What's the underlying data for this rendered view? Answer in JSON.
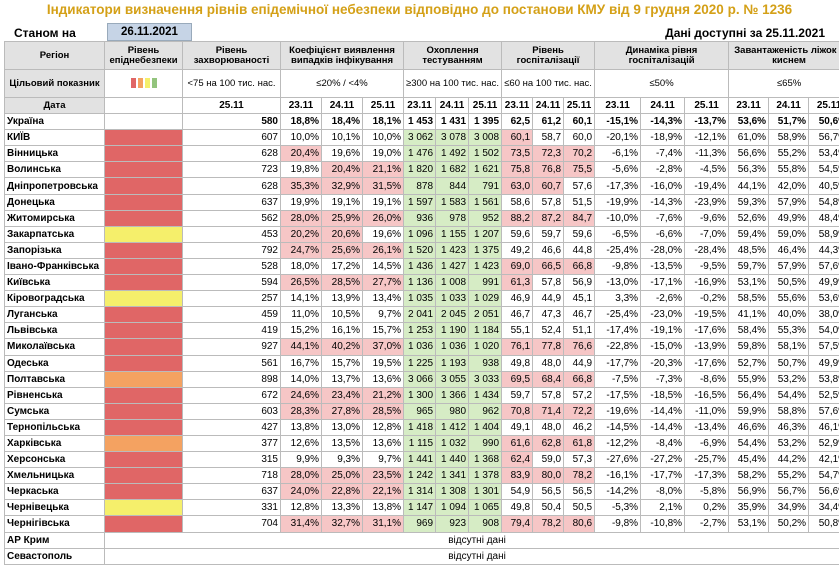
{
  "header": {
    "title": "Індикатори визначення рівнів епідемічної небезпеки відповідно до постанови КМУ від 9 грудня 2020 р. № 1236",
    "asof_label": "Станом на",
    "asof_date": "26.11.2021",
    "avail_label": "Дані доступні за 25.11.2021"
  },
  "columns": {
    "region": "Регіон",
    "level": "Рівень епіднебезпеки",
    "incidence": "Рівень захворюваності",
    "detection": "Коефіцієнт виявлення випадків інфікування",
    "testing": "Охоплення тестуванням",
    "hosp": "Рівень госпіталізації",
    "dynamics": "Динаміка рівня госпіталізацій",
    "oxygen": "Завантаженість ліжок з киснем"
  },
  "targets": {
    "label": "Цільовий показник",
    "incidence": "<75 на 100 тис. нас.",
    "detection": "≤20% / <4%",
    "testing": "≥300 на 100 тис. нас.",
    "hosp": "≤60 на 100 тис. нас.",
    "dynamics": "≤50%",
    "oxygen": "≤65%",
    "legend_colors": [
      "#e06666",
      "#f4a261",
      "#f5ef6b",
      "#93c47d"
    ]
  },
  "dates": {
    "label": "Дата",
    "incidence": "25.11",
    "triple": [
      "23.11",
      "24.11",
      "25.11"
    ]
  },
  "rows": [
    {
      "region": "Україна",
      "level": "",
      "inc": "580",
      "det": [
        "18,8%",
        "18,4%",
        "18,1%"
      ],
      "test": [
        "1 453",
        "1 431",
        "1 395"
      ],
      "hosp": [
        "62,5",
        "61,2",
        "60,1"
      ],
      "dyn": [
        "-15,1%",
        "-14,3%",
        "-13,7%"
      ],
      "oxy": [
        "53,6%",
        "51,7%",
        "50,6%"
      ]
    },
    {
      "region": "КИЇВ",
      "level": "red",
      "inc": "607",
      "det": [
        "10,0%",
        "10,1%",
        "10,0%"
      ],
      "test": [
        "3 062",
        "3 078",
        "3 008"
      ],
      "hosp": [
        "60,1",
        "58,7",
        "60,0"
      ],
      "dyn": [
        "-20,1%",
        "-18,9%",
        "-12,1%"
      ],
      "oxy": [
        "61,0%",
        "58,9%",
        "56,7%"
      ]
    },
    {
      "region": "Вінницька",
      "level": "red",
      "inc": "628",
      "det": [
        "20,4%",
        "19,6%",
        "19,0%"
      ],
      "test": [
        "1 476",
        "1 492",
        "1 502"
      ],
      "hosp": [
        "73,5",
        "72,3",
        "70,2"
      ],
      "dyn": [
        "-6,1%",
        "-7,4%",
        "-11,3%"
      ],
      "oxy": [
        "56,6%",
        "55,2%",
        "53,4%"
      ]
    },
    {
      "region": "Волинська",
      "level": "red",
      "inc": "723",
      "det": [
        "19,8%",
        "20,4%",
        "21,1%"
      ],
      "test": [
        "1 820",
        "1 682",
        "1 621"
      ],
      "hosp": [
        "75,8",
        "76,8",
        "75,5"
      ],
      "dyn": [
        "-5,6%",
        "-2,8%",
        "-4,5%"
      ],
      "oxy": [
        "56,3%",
        "55,8%",
        "54,5%"
      ]
    },
    {
      "region": "Дніпропетровська",
      "level": "red",
      "inc": "628",
      "det": [
        "35,3%",
        "32,9%",
        "31,5%"
      ],
      "test": [
        "878",
        "844",
        "791"
      ],
      "hosp": [
        "63,0",
        "60,7",
        "57,6"
      ],
      "dyn": [
        "-17,3%",
        "-16,0%",
        "-19,4%"
      ],
      "oxy": [
        "44,1%",
        "42,0%",
        "40,5%"
      ]
    },
    {
      "region": "Донецька",
      "level": "red",
      "inc": "637",
      "det": [
        "19,9%",
        "19,1%",
        "19,1%"
      ],
      "test": [
        "1 597",
        "1 583",
        "1 561"
      ],
      "hosp": [
        "58,6",
        "57,8",
        "51,5"
      ],
      "dyn": [
        "-19,9%",
        "-14,3%",
        "-23,9%"
      ],
      "oxy": [
        "59,3%",
        "57,9%",
        "54,8%"
      ]
    },
    {
      "region": "Житомирська",
      "level": "red",
      "inc": "562",
      "det": [
        "28,0%",
        "25,9%",
        "26,0%"
      ],
      "test": [
        "936",
        "978",
        "952"
      ],
      "hosp": [
        "88,2",
        "87,2",
        "84,7"
      ],
      "dyn": [
        "-10,0%",
        "-7,6%",
        "-9,6%"
      ],
      "oxy": [
        "52,6%",
        "49,9%",
        "48,4%"
      ]
    },
    {
      "region": "Закарпатська",
      "level": "yel",
      "inc": "453",
      "det": [
        "20,2%",
        "20,6%",
        "19,6%"
      ],
      "test": [
        "1 096",
        "1 155",
        "1 207"
      ],
      "hosp": [
        "59,6",
        "59,7",
        "59,6"
      ],
      "dyn": [
        "-6,5%",
        "-6,6%",
        "-7,0%"
      ],
      "oxy": [
        "59,4%",
        "59,0%",
        "58,9%"
      ]
    },
    {
      "region": "Запорізька",
      "level": "red",
      "inc": "792",
      "det": [
        "24,7%",
        "25,6%",
        "26,1%"
      ],
      "test": [
        "1 520",
        "1 423",
        "1 375"
      ],
      "hosp": [
        "49,2",
        "46,6",
        "44,8"
      ],
      "dyn": [
        "-25,4%",
        "-28,0%",
        "-28,4%"
      ],
      "oxy": [
        "48,5%",
        "46,4%",
        "44,3%"
      ]
    },
    {
      "region": "Івано-Франківська",
      "level": "red",
      "inc": "528",
      "det": [
        "18,0%",
        "17,2%",
        "14,5%"
      ],
      "test": [
        "1 436",
        "1 427",
        "1 423"
      ],
      "hosp": [
        "69,0",
        "66,5",
        "66,8"
      ],
      "dyn": [
        "-9,8%",
        "-13,5%",
        "-9,5%"
      ],
      "oxy": [
        "59,7%",
        "57,9%",
        "57,6%"
      ]
    },
    {
      "region": "Київська",
      "level": "red",
      "inc": "594",
      "det": [
        "26,5%",
        "28,5%",
        "27,7%"
      ],
      "test": [
        "1 136",
        "1 008",
        "991"
      ],
      "hosp": [
        "61,3",
        "57,8",
        "56,9"
      ],
      "dyn": [
        "-13,0%",
        "-17,1%",
        "-16,9%"
      ],
      "oxy": [
        "53,1%",
        "50,5%",
        "49,9%"
      ]
    },
    {
      "region": "Кіровоградська",
      "level": "yel",
      "inc": "257",
      "det": [
        "14,1%",
        "13,9%",
        "13,4%"
      ],
      "test": [
        "1 035",
        "1 033",
        "1 029"
      ],
      "hosp": [
        "46,9",
        "44,9",
        "45,1"
      ],
      "dyn": [
        "3,3%",
        "-2,6%",
        "-0,2%"
      ],
      "oxy": [
        "58,5%",
        "55,6%",
        "53,6%"
      ]
    },
    {
      "region": "Луганська",
      "level": "red",
      "inc": "459",
      "det": [
        "11,0%",
        "10,5%",
        "9,7%"
      ],
      "test": [
        "2 041",
        "2 045",
        "2 051"
      ],
      "hosp": [
        "46,7",
        "47,3",
        "46,7"
      ],
      "dyn": [
        "-25,4%",
        "-23,0%",
        "-19,5%"
      ],
      "oxy": [
        "41,1%",
        "40,0%",
        "38,0%"
      ]
    },
    {
      "region": "Львівська",
      "level": "red",
      "inc": "419",
      "det": [
        "15,2%",
        "16,1%",
        "15,7%"
      ],
      "test": [
        "1 253",
        "1 190",
        "1 184"
      ],
      "hosp": [
        "55,1",
        "52,4",
        "51,1"
      ],
      "dyn": [
        "-17,4%",
        "-19,1%",
        "-17,6%"
      ],
      "oxy": [
        "58,4%",
        "55,3%",
        "54,0%"
      ]
    },
    {
      "region": "Миколаївська",
      "level": "red",
      "inc": "927",
      "det": [
        "44,1%",
        "40,2%",
        "37,0%"
      ],
      "test": [
        "1 036",
        "1 036",
        "1 020"
      ],
      "hosp": [
        "76,1",
        "77,8",
        "76,6"
      ],
      "dyn": [
        "-22,8%",
        "-15,0%",
        "-13,9%"
      ],
      "oxy": [
        "59,8%",
        "58,1%",
        "57,5%"
      ]
    },
    {
      "region": "Одеська",
      "level": "red",
      "inc": "561",
      "det": [
        "16,7%",
        "15,7%",
        "19,5%"
      ],
      "test": [
        "1 225",
        "1 193",
        "938"
      ],
      "hosp": [
        "49,8",
        "48,0",
        "44,9"
      ],
      "dyn": [
        "-17,7%",
        "-20,3%",
        "-17,6%"
      ],
      "oxy": [
        "52,7%",
        "50,7%",
        "49,9%"
      ]
    },
    {
      "region": "Полтавська",
      "level": "ora",
      "inc": "898",
      "det": [
        "14,0%",
        "13,7%",
        "13,6%"
      ],
      "test": [
        "3 066",
        "3 055",
        "3 033"
      ],
      "hosp": [
        "69,5",
        "68,4",
        "66,8"
      ],
      "dyn": [
        "-7,5%",
        "-7,3%",
        "-8,6%"
      ],
      "oxy": [
        "55,9%",
        "53,2%",
        "53,8%"
      ]
    },
    {
      "region": "Рівненська",
      "level": "red",
      "inc": "672",
      "det": [
        "24,6%",
        "23,4%",
        "21,2%"
      ],
      "test": [
        "1 300",
        "1 366",
        "1 434"
      ],
      "hosp": [
        "59,7",
        "57,8",
        "57,2"
      ],
      "dyn": [
        "-17,5%",
        "-18,5%",
        "-16,5%"
      ],
      "oxy": [
        "56,4%",
        "54,4%",
        "52,5%"
      ]
    },
    {
      "region": "Сумська",
      "level": "red",
      "inc": "603",
      "det": [
        "28,3%",
        "27,8%",
        "28,5%"
      ],
      "test": [
        "965",
        "980",
        "962"
      ],
      "hosp": [
        "70,8",
        "71,4",
        "72,2"
      ],
      "dyn": [
        "-19,6%",
        "-14,4%",
        "-11,0%"
      ],
      "oxy": [
        "59,9%",
        "58,8%",
        "57,6%"
      ]
    },
    {
      "region": "Тернопільська",
      "level": "red",
      "inc": "427",
      "det": [
        "13,8%",
        "13,0%",
        "12,8%"
      ],
      "test": [
        "1 418",
        "1 412",
        "1 404"
      ],
      "hosp": [
        "49,1",
        "48,0",
        "46,2"
      ],
      "dyn": [
        "-14,5%",
        "-14,4%",
        "-13,4%"
      ],
      "oxy": [
        "46,6%",
        "46,3%",
        "46,1%"
      ]
    },
    {
      "region": "Харківська",
      "level": "ora",
      "inc": "377",
      "det": [
        "12,6%",
        "13,5%",
        "13,6%"
      ],
      "test": [
        "1 115",
        "1 032",
        "990"
      ],
      "hosp": [
        "61,6",
        "62,8",
        "61,8"
      ],
      "dyn": [
        "-12,2%",
        "-8,4%",
        "-6,9%"
      ],
      "oxy": [
        "54,4%",
        "53,2%",
        "52,9%"
      ]
    },
    {
      "region": "Херсонська",
      "level": "red",
      "inc": "315",
      "det": [
        "9,9%",
        "9,3%",
        "9,7%"
      ],
      "test": [
        "1 441",
        "1 440",
        "1 368"
      ],
      "hosp": [
        "62,4",
        "59,0",
        "57,3"
      ],
      "dyn": [
        "-27,6%",
        "-27,2%",
        "-25,7%"
      ],
      "oxy": [
        "45,4%",
        "44,2%",
        "42,1%"
      ]
    },
    {
      "region": "Хмельницька",
      "level": "red",
      "inc": "718",
      "det": [
        "28,0%",
        "25,0%",
        "23,5%"
      ],
      "test": [
        "1 242",
        "1 341",
        "1 378"
      ],
      "hosp": [
        "83,9",
        "80,0",
        "78,2"
      ],
      "dyn": [
        "-16,1%",
        "-17,7%",
        "-17,3%"
      ],
      "oxy": [
        "58,2%",
        "55,2%",
        "54,7%"
      ]
    },
    {
      "region": "Черкаська",
      "level": "red",
      "inc": "637",
      "det": [
        "24,0%",
        "22,8%",
        "22,1%"
      ],
      "test": [
        "1 314",
        "1 308",
        "1 301"
      ],
      "hosp": [
        "54,9",
        "56,5",
        "56,5"
      ],
      "dyn": [
        "-14,2%",
        "-8,0%",
        "-5,8%"
      ],
      "oxy": [
        "56,9%",
        "56,7%",
        "56,6%"
      ]
    },
    {
      "region": "Чернівецька",
      "level": "yel",
      "inc": "331",
      "det": [
        "12,8%",
        "13,3%",
        "13,8%"
      ],
      "test": [
        "1 147",
        "1 094",
        "1 065"
      ],
      "hosp": [
        "49,8",
        "50,4",
        "50,5"
      ],
      "dyn": [
        "-5,3%",
        "2,1%",
        "0,2%"
      ],
      "oxy": [
        "35,9%",
        "34,9%",
        "34,4%"
      ]
    },
    {
      "region": "Чернігівська",
      "level": "red",
      "inc": "704",
      "det": [
        "31,4%",
        "32,7%",
        "31,1%"
      ],
      "test": [
        "969",
        "923",
        "908"
      ],
      "hosp": [
        "79,4",
        "78,2",
        "80,6"
      ],
      "dyn": [
        "-9,8%",
        "-10,8%",
        "-2,7%"
      ],
      "oxy": [
        "53,1%",
        "50,2%",
        "50,8%"
      ]
    }
  ],
  "footer_rows": [
    {
      "region": "АР Крим",
      "note": "відсутні дані"
    },
    {
      "region": "Севастополь",
      "note": "відсутні дані"
    }
  ],
  "colors": {
    "red": "#e06666",
    "yellow": "#f5ef6b",
    "orange": "#f4a261",
    "pink": "#f6c6c6",
    "green": "#d6ecc5"
  }
}
